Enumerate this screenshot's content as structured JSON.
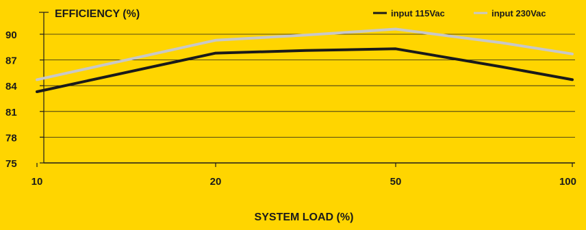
{
  "chart_data": {
    "type": "line",
    "title": "EFFICIENCY (%)",
    "xlabel": "SYSTEM LOAD (%)",
    "ylabel": "",
    "categories": [
      "10",
      "20",
      "50",
      "100"
    ],
    "ylim": [
      75,
      90
    ],
    "yticks": [
      75,
      78,
      81,
      84,
      87,
      90
    ],
    "grid": true,
    "legend_position": "top-right",
    "series": [
      {
        "name": "input 115Vac",
        "color": "#1a1a1a",
        "x": [
          0,
          1,
          1.5,
          2,
          2.6,
          3
        ],
        "values": [
          83.3,
          87.8,
          88.1,
          88.3,
          86.2,
          84.7
        ]
      },
      {
        "name": "input 230Vac",
        "color": "#c8c8c8",
        "x": [
          0,
          1,
          1.5,
          2,
          2.6,
          3
        ],
        "values": [
          84.7,
          89.3,
          89.9,
          90.6,
          89.0,
          87.7
        ]
      }
    ]
  },
  "colors": {
    "background": "#ffd500",
    "axis": "#1a1a1a",
    "grid": "#1a1a1a"
  }
}
